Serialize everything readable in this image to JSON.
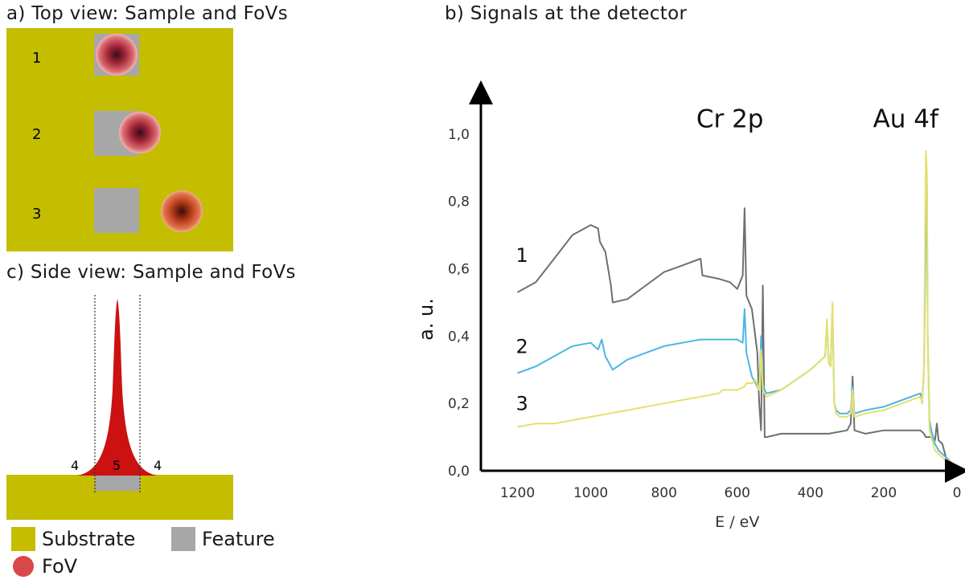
{
  "panel_a": {
    "title": "a) Top view: Sample and FoVs",
    "row_labels": [
      "1",
      "2",
      "3"
    ]
  },
  "panel_b": {
    "title": "b) Signals at the detector"
  },
  "panel_c": {
    "title": "c) Side view: Sample and FoVs",
    "region_labels": {
      "left": "4",
      "center": "5",
      "right": "4"
    }
  },
  "legend": {
    "substrate": "Substrate",
    "feature": "Feature",
    "fov": "FoV"
  },
  "colors": {
    "substrate": "#c4bd00",
    "feature": "#a7a7a7",
    "fov": "#d9474b",
    "series_1": "#6f6f6f",
    "series_2": "#4bb6e6",
    "series_3": "#e6e06a"
  },
  "chart_data": {
    "type": "line",
    "title": "",
    "xlabel": "E / eV",
    "ylabel": "a. u.",
    "xlim": [
      1300,
      0
    ],
    "ylim": [
      0,
      1.1
    ],
    "x_ticks": [
      1200,
      1000,
      800,
      600,
      400,
      200,
      0
    ],
    "y_ticks": [
      "0,0",
      "0,2",
      "0,4",
      "0,6",
      "0,8",
      "1,0"
    ],
    "y_tick_values": [
      0,
      0.2,
      0.4,
      0.6,
      0.8,
      1.0
    ],
    "peak_labels": [
      {
        "text": "Cr 2p",
        "x": 620,
        "y": 1.02
      },
      {
        "text": "Au 4f",
        "x": 140,
        "y": 1.02
      }
    ],
    "series": [
      {
        "label": "1",
        "x": [
          1200,
          1150,
          1100,
          1050,
          1000,
          980,
          975,
          960,
          945,
          940,
          900,
          850,
          800,
          750,
          700,
          695,
          650,
          620,
          600,
          585,
          580,
          575,
          560,
          545,
          540,
          535,
          530,
          525,
          520,
          480,
          400,
          350,
          300,
          290,
          285,
          280,
          250,
          200,
          150,
          100,
          90,
          85,
          80,
          70,
          60,
          55,
          50,
          40,
          30,
          20,
          10,
          5
        ],
        "y": [
          0.53,
          0.56,
          0.63,
          0.7,
          0.73,
          0.72,
          0.68,
          0.65,
          0.55,
          0.5,
          0.51,
          0.55,
          0.59,
          0.61,
          0.63,
          0.58,
          0.57,
          0.56,
          0.54,
          0.58,
          0.78,
          0.52,
          0.48,
          0.35,
          0.2,
          0.12,
          0.55,
          0.1,
          0.1,
          0.11,
          0.11,
          0.11,
          0.12,
          0.14,
          0.28,
          0.12,
          0.11,
          0.12,
          0.12,
          0.12,
          0.11,
          0.1,
          0.1,
          0.1,
          0.09,
          0.14,
          0.09,
          0.08,
          0.04,
          0.03,
          0.02,
          0.01
        ]
      },
      {
        "label": "2",
        "x": [
          1200,
          1150,
          1100,
          1050,
          1000,
          980,
          970,
          960,
          940,
          900,
          850,
          800,
          750,
          700,
          650,
          600,
          585,
          580,
          575,
          560,
          550,
          540,
          535,
          530,
          525,
          520,
          480,
          400,
          360,
          355,
          350,
          345,
          340,
          335,
          330,
          320,
          300,
          290,
          285,
          280,
          250,
          200,
          150,
          100,
          95,
          90,
          85,
          82,
          80,
          75,
          70,
          60,
          50,
          40,
          30,
          20,
          10,
          5
        ],
        "y": [
          0.29,
          0.31,
          0.34,
          0.37,
          0.38,
          0.36,
          0.39,
          0.34,
          0.3,
          0.33,
          0.35,
          0.37,
          0.38,
          0.39,
          0.39,
          0.39,
          0.38,
          0.48,
          0.35,
          0.28,
          0.26,
          0.24,
          0.4,
          0.26,
          0.24,
          0.23,
          0.24,
          0.3,
          0.34,
          0.44,
          0.32,
          0.31,
          0.49,
          0.2,
          0.18,
          0.17,
          0.17,
          0.18,
          0.25,
          0.17,
          0.18,
          0.19,
          0.21,
          0.23,
          0.2,
          0.3,
          0.72,
          0.85,
          0.4,
          0.15,
          0.12,
          0.08,
          0.06,
          0.05,
          0.04,
          0.03,
          0.02,
          0.01
        ]
      },
      {
        "label": "3",
        "x": [
          1200,
          1150,
          1100,
          1050,
          1000,
          950,
          900,
          850,
          800,
          750,
          700,
          650,
          640,
          600,
          580,
          575,
          560,
          550,
          540,
          535,
          530,
          525,
          520,
          480,
          400,
          360,
          355,
          350,
          345,
          340,
          335,
          330,
          320,
          300,
          290,
          285,
          280,
          250,
          200,
          150,
          100,
          95,
          90,
          85,
          82,
          80,
          75,
          70,
          60,
          50,
          40,
          30,
          20,
          10,
          5
        ],
        "y": [
          0.13,
          0.14,
          0.14,
          0.15,
          0.16,
          0.17,
          0.18,
          0.19,
          0.2,
          0.21,
          0.22,
          0.23,
          0.24,
          0.24,
          0.25,
          0.26,
          0.26,
          0.27,
          0.24,
          0.36,
          0.24,
          0.23,
          0.22,
          0.24,
          0.3,
          0.34,
          0.45,
          0.32,
          0.31,
          0.5,
          0.2,
          0.17,
          0.16,
          0.16,
          0.17,
          0.24,
          0.16,
          0.17,
          0.18,
          0.2,
          0.22,
          0.2,
          0.3,
          0.95,
          0.88,
          0.4,
          0.12,
          0.1,
          0.06,
          0.05,
          0.04,
          0.03,
          0.03,
          0.02,
          0.01
        ]
      }
    ]
  }
}
